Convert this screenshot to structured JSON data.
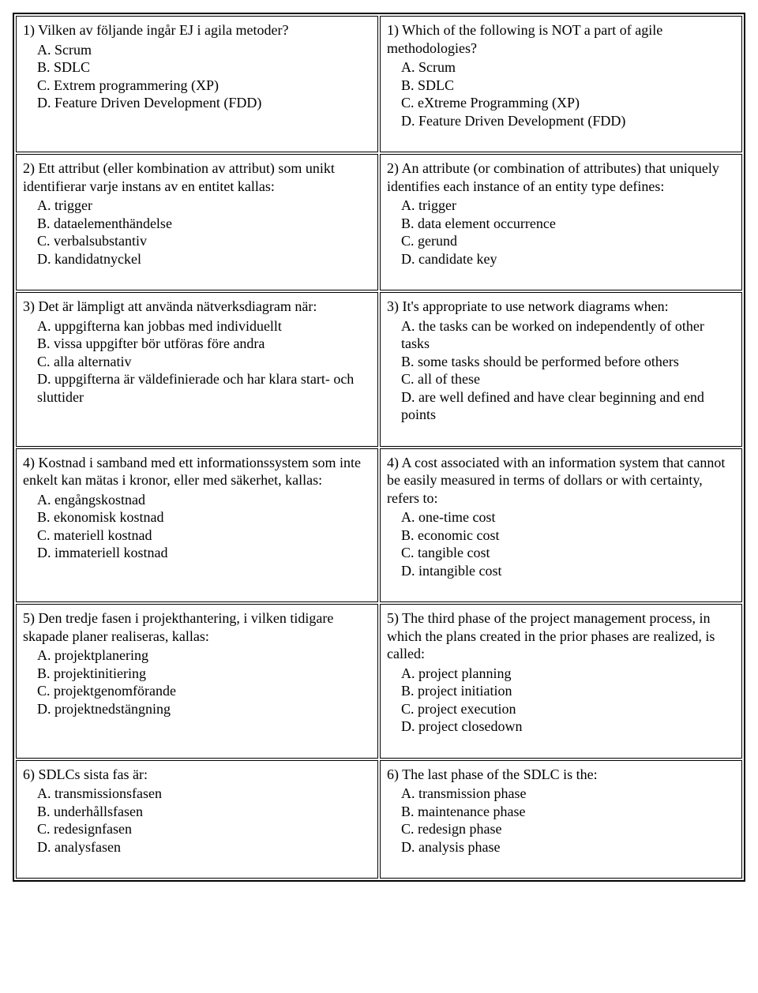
{
  "rows": [
    {
      "left": {
        "question": "1) Vilken av följande ingår EJ i agila metoder?",
        "options": [
          "A. Scrum",
          "B. SDLC",
          "C. Extrem programmering (XP)",
          "D. Feature Driven Development (FDD)"
        ]
      },
      "right": {
        "question": "1) Which of the following is NOT a part of agile methodologies?",
        "options": [
          "A. Scrum",
          "B. SDLC",
          "C. eXtreme Programming (XP)",
          "D. Feature Driven Development (FDD)"
        ]
      }
    },
    {
      "left": {
        "question": "2) Ett attribut (eller kombination av attribut) som unikt identifierar varje instans av en entitet kallas:",
        "options": [
          "A. trigger",
          "B. dataelementhändelse",
          "C. verbalsubstantiv",
          "D. kandidatnyckel"
        ]
      },
      "right": {
        "question": "2) An attribute (or combination of attributes) that uniquely identifies each instance of an entity type defines:",
        "options": [
          "A. trigger",
          "B. data element occurrence",
          "C. gerund",
          "D. candidate key"
        ]
      }
    },
    {
      "left": {
        "question": "3) Det är lämpligt att använda nätverksdiagram när:",
        "options": [
          "A. uppgifterna kan jobbas med individuellt",
          "B. vissa uppgifter bör utföras före andra",
          "C. alla alternativ",
          "D. uppgifterna är väldefinierade och har klara start- och sluttider"
        ]
      },
      "right": {
        "question": "3) It's appropriate to use network diagrams when:",
        "options": [
          "A. the tasks can be worked on independently of other tasks",
          "B. some tasks should be performed before others",
          "C. all of these",
          "D. are well defined and have clear beginning and end points"
        ]
      }
    },
    {
      "left": {
        "question": "4) Kostnad i samband med ett informationssystem som inte enkelt kan mätas i kronor, eller med säkerhet, kallas:",
        "options": [
          "A. engångskostnad",
          "B. ekonomisk kostnad",
          "C. materiell kostnad",
          "D. immateriell kostnad"
        ]
      },
      "right": {
        "question": "4) A cost associated with an information system that cannot be easily measured in terms of dollars or with certainty, refers to:",
        "options": [
          "A. one-time cost",
          "B. economic cost",
          "C. tangible cost",
          "D. intangible cost"
        ]
      }
    },
    {
      "left": {
        "question": "5) Den tredje fasen i projekthantering, i vilken tidigare skapade planer realiseras, kallas:",
        "options": [
          "A. projektplanering",
          "B. projektinitiering",
          "C. projektgenomförande",
          "D. projektnedstängning"
        ]
      },
      "right": {
        "question": "5) The third phase of the project management process, in which the plans created in the prior phases are realized, is called:",
        "options": [
          "A. project planning",
          "B. project initiation",
          "C. project execution",
          "D. project closedown"
        ]
      }
    },
    {
      "left": {
        "question": "6) SDLCs sista fas är:",
        "options": [
          "A. transmissionsfasen",
          "B. underhållsfasen",
          "C. redesignfasen",
          "D. analysfasen"
        ]
      },
      "right": {
        "question": "6) The last phase of the SDLC is the:",
        "options": [
          "A. transmission phase",
          "B. maintenance phase",
          "C. redesign phase",
          "D. analysis phase"
        ]
      }
    }
  ]
}
